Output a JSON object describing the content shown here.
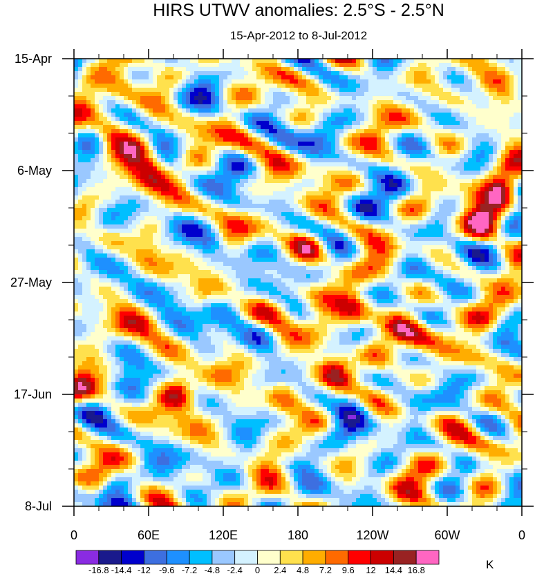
{
  "chart_data": {
    "type": "heatmap",
    "title": "HIRS UTWV anomalies: 2.5°S - 2.5°N",
    "subtitle": "15-Apr-2012 to 8-Jul-2012",
    "xlabel": "",
    "ylabel": "",
    "x_ticks": [
      "0",
      "60E",
      "120E",
      "180",
      "120W",
      "60W",
      "0"
    ],
    "y_ticks": [
      "15-Apr",
      "6-May",
      "27-May",
      "17-Jun",
      "8-Jul"
    ],
    "colorbar": {
      "unit": "K",
      "levels": [
        "-16.8",
        "-14.4",
        "-12",
        "-9.6",
        "-7.2",
        "-4.8",
        "-2.4",
        "0",
        "2.4",
        "4.8",
        "7.2",
        "9.6",
        "12",
        "14.4",
        "16.8"
      ],
      "colors": [
        "#8a2be2",
        "#1a1a8c",
        "#0000cd",
        "#3d6fe0",
        "#1e90ff",
        "#00bfff",
        "#9ac8ff",
        "#d4f2ff",
        "#ffffcc",
        "#ffe14d",
        "#ffad00",
        "#ff6a00",
        "#ff0000",
        "#cc0000",
        "#992222",
        "#ff66c2"
      ]
    },
    "hotspots": [
      {
        "lon": 210,
        "day": 58,
        "amp": 12
      },
      {
        "lon": 225,
        "day": 47,
        "amp": 10
      },
      {
        "lon": 245,
        "day": 53,
        "amp": 9
      },
      {
        "lon": 195,
        "day": 48,
        "amp": 7
      },
      {
        "lon": 265,
        "day": 50,
        "amp": 7
      },
      {
        "lon": 344,
        "day": 25,
        "amp": 16
      },
      {
        "lon": 330,
        "day": 31,
        "amp": 12
      },
      {
        "lon": 345,
        "day": 9,
        "amp": 9
      },
      {
        "lon": 52,
        "day": 17,
        "amp": 9
      },
      {
        "lon": 62,
        "day": 20,
        "amp": 8
      },
      {
        "lon": 82,
        "day": 63,
        "amp": 12
      },
      {
        "lon": 4,
        "day": 62,
        "amp": 11
      },
      {
        "lon": 168,
        "day": 64,
        "amp": 10
      },
      {
        "lon": 190,
        "day": 35,
        "amp": 7
      },
      {
        "lon": 330,
        "day": 50,
        "amp": 8
      },
      {
        "lon": 32,
        "day": 13,
        "amp": 8
      },
      {
        "lon": 328,
        "day": 77,
        "amp": 7
      },
      {
        "lon": 60,
        "day": 36,
        "amp": 6
      },
      {
        "lon": 40,
        "day": 5,
        "amp": 7
      },
      {
        "lon": 227,
        "day": 65,
        "amp": -10
      },
      {
        "lon": 215,
        "day": 70,
        "amp": -8
      },
      {
        "lon": 90,
        "day": 43,
        "amp": -7
      },
      {
        "lon": 35,
        "day": 80,
        "amp": -8
      },
      {
        "lon": 48,
        "day": 65,
        "amp": -7
      },
      {
        "lon": 140,
        "day": 75,
        "amp": -6
      },
      {
        "lon": 110,
        "day": 35,
        "amp": -7
      },
      {
        "lon": 200,
        "day": 14,
        "amp": -6
      },
      {
        "lon": 20,
        "day": 30,
        "amp": -6
      },
      {
        "lon": 260,
        "day": 25,
        "amp": -7
      },
      {
        "lon": 150,
        "day": 52,
        "amp": -7
      },
      {
        "lon": 300,
        "day": 40,
        "amp": -6
      },
      {
        "lon": 110,
        "day": 10,
        "amp": -6
      }
    ]
  }
}
